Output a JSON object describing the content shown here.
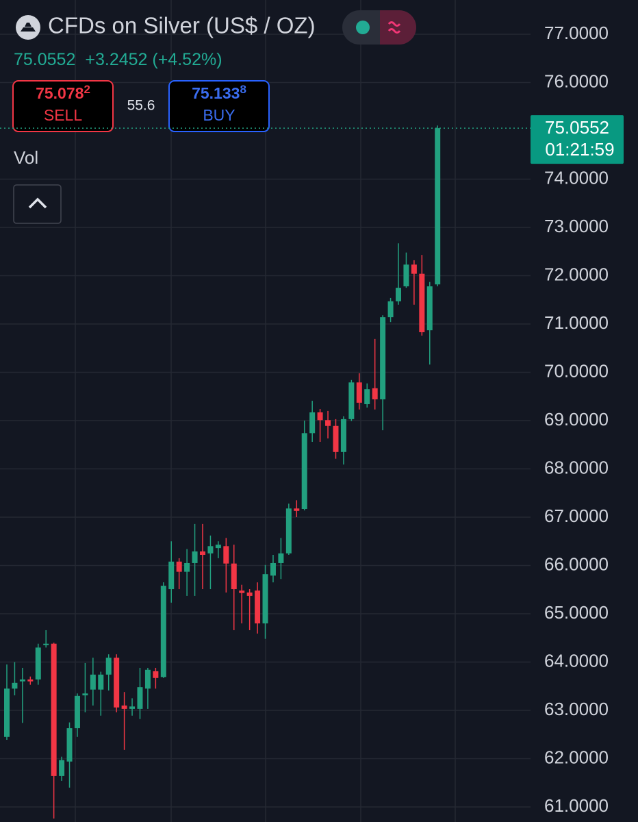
{
  "header": {
    "title": "CFDs on Silver (US$ / OZ)",
    "price": "75.0552",
    "change": "+3.2452 (+4.52%)",
    "sell": {
      "price": "75.078",
      "pip": "2",
      "label": "SELL"
    },
    "spread": "55.6",
    "buy": {
      "price": "75.133",
      "pip": "8",
      "label": "BUY"
    },
    "volume_label": "Vol"
  },
  "chart_data": {
    "type": "candlestick",
    "categories": [
      null,
      null,
      null,
      null,
      null,
      null,
      null,
      null,
      null,
      null,
      null,
      null,
      null,
      null,
      null,
      null,
      null,
      null,
      null,
      null,
      null,
      null,
      null,
      null,
      null,
      null,
      null,
      null,
      null,
      null,
      null,
      null,
      null,
      null,
      null,
      null,
      null,
      null,
      null,
      null,
      null,
      null,
      null,
      null,
      null,
      null,
      null,
      null,
      null,
      null,
      null,
      null,
      null,
      null,
      null,
      null
    ],
    "open": [
      62.45,
      63.45,
      63.6,
      63.64,
      63.64,
      64.35,
      64.38,
      61.64,
      61.94,
      62.63,
      63.31,
      63.43,
      63.43,
      63.74,
      64.09,
      63.1,
      63.03,
      63.03,
      63.45,
      63.81,
      63.69,
      65.51,
      66.08,
      65.87,
      66.05,
      66.29,
      66.25,
      66.36,
      66.4,
      66.04,
      65.48,
      65.44,
      65.48,
      64.8,
      65.79,
      66.05,
      66.25,
      67.18,
      67.17,
      68.74,
      69.17,
      69.01,
      68.89,
      68.35,
      69.03,
      69.79,
      69.34,
      69.67,
      69.44,
      71.14,
      71.47,
      71.78,
      72.23,
      72.04,
      70.87,
      71.82
    ],
    "high": [
      63.95,
      64.0,
      63.88,
      63.7,
      64.38,
      64.66,
      64.4,
      62.04,
      62.75,
      63.35,
      63.98,
      64.09,
      63.8,
      64.16,
      64.16,
      63.38,
      63.25,
      63.88,
      63.88,
      63.88,
      65.65,
      66.5,
      66.15,
      66.34,
      66.86,
      66.86,
      66.62,
      66.5,
      66.57,
      66.43,
      65.6,
      65.51,
      65.65,
      66.01,
      66.22,
      66.57,
      67.28,
      67.35,
      69.0,
      69.41,
      69.24,
      69.2,
      69.03,
      69.09,
      69.84,
      69.98,
      69.77,
      70.69,
      71.18,
      71.54,
      72.67,
      72.48,
      72.32,
      72.43,
      71.87,
      75.11
    ],
    "low": [
      62.39,
      63.31,
      62.74,
      63.53,
      63.53,
      64.3,
      60.76,
      61.54,
      61.4,
      62.45,
      62.96,
      63.1,
      62.89,
      63.41,
      62.96,
      62.18,
      62.89,
      62.82,
      63.03,
      63.45,
      63.67,
      65.23,
      65.51,
      65.37,
      65.37,
      65.51,
      65.51,
      66.15,
      65.44,
      64.66,
      64.8,
      64.66,
      64.59,
      64.48,
      65.65,
      65.72,
      66.22,
      67.0,
      67.14,
      68.56,
      68.56,
      68.63,
      68.21,
      68.09,
      68.99,
      69.23,
      69.27,
      69.23,
      68.8,
      71.04,
      71.4,
      71.75,
      71.4,
      70.76,
      70.16,
      71.78
    ],
    "close": [
      63.45,
      63.57,
      63.64,
      63.6,
      64.3,
      64.38,
      61.64,
      61.97,
      62.63,
      63.3,
      63.35,
      63.74,
      63.74,
      64.09,
      63.06,
      63.03,
      63.08,
      63.48,
      63.84,
      63.67,
      65.58,
      66.08,
      65.87,
      66.05,
      66.29,
      66.22,
      66.4,
      66.43,
      66.04,
      65.51,
      65.43,
      65.37,
      64.8,
      65.82,
      66.05,
      66.25,
      67.18,
      67.13,
      68.74,
      69.17,
      69.01,
      68.89,
      68.35,
      69.03,
      69.79,
      69.37,
      69.65,
      69.44,
      71.14,
      71.47,
      71.75,
      72.23,
      72.04,
      70.83,
      71.78,
      75.0552
    ],
    "up_color": "#22a07f",
    "down_color": "#f23645",
    "ylim": [
      60.688,
      77.709
    ],
    "yticks": [
      {
        "value": 61,
        "label": "61.0000"
      },
      {
        "value": 62,
        "label": "62.0000"
      },
      {
        "value": 63,
        "label": "63.0000"
      },
      {
        "value": 64,
        "label": "64.0000"
      },
      {
        "value": 65,
        "label": "65.0000"
      },
      {
        "value": 66,
        "label": "66.0000"
      },
      {
        "value": 67,
        "label": "67.0000"
      },
      {
        "value": 68,
        "label": "68.0000"
      },
      {
        "value": 69,
        "label": "69.0000"
      },
      {
        "value": 70,
        "label": "70.0000"
      },
      {
        "value": 71,
        "label": "71.0000"
      },
      {
        "value": 72,
        "label": "72.0000"
      },
      {
        "value": 73,
        "label": "73.0000"
      },
      {
        "value": 74,
        "label": "74.0000"
      },
      {
        "value": 76,
        "label": "76.0000"
      },
      {
        "value": 77,
        "label": "77.0000"
      }
    ],
    "grid": true,
    "last_price": {
      "value": 75.0552,
      "label": "75.0552"
    },
    "countdown": "01:21:59"
  }
}
